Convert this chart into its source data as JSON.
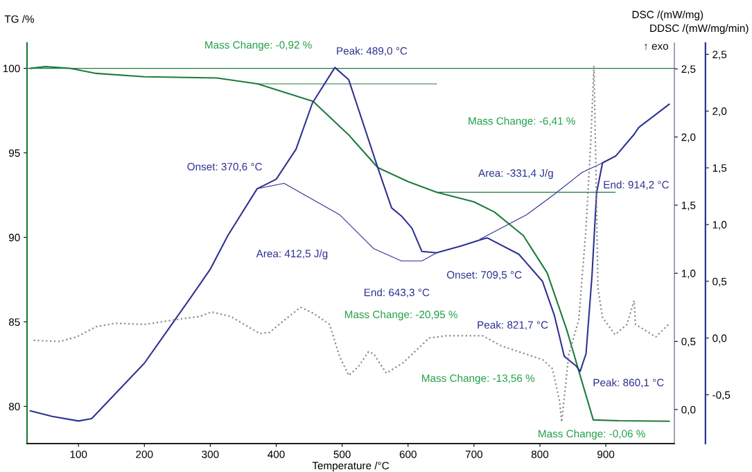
{
  "chart_data": {
    "type": "line",
    "xlabel": "Temperature /°C",
    "ylabel": "TG /%",
    "y2label": "DSC /(mW/mg)",
    "y3label": "DDSC /(mW/mg/min)",
    "xlim": [
      22,
      1004
    ],
    "xticks": [
      100,
      200,
      300,
      400,
      500,
      600,
      700,
      800,
      900
    ],
    "ylim": [
      77.8,
      101.5
    ],
    "yticks": [
      80,
      85,
      90,
      95,
      100
    ],
    "y2lim": [
      -0.25,
      2.69
    ],
    "y2ticks": [
      {
        "value": 0,
        "label": "0,0"
      },
      {
        "value": 0.5,
        "label": "0,5"
      },
      {
        "value": 1,
        "label": "1,0"
      },
      {
        "value": 1.5,
        "label": "1,5"
      },
      {
        "value": 2,
        "label": "2,0"
      },
      {
        "value": 2.5,
        "label": "2,5"
      }
    ],
    "y3lim": [
      -0.93,
      2.6
    ],
    "y3ticks": [
      {
        "value": -0.5,
        "label": "-0,5"
      },
      {
        "value": 0,
        "label": "0,0"
      },
      {
        "value": 0.5,
        "label": "0,5"
      },
      {
        "value": 1,
        "label": "1,0"
      },
      {
        "value": 1.5,
        "label": "1,5"
      },
      {
        "value": 2,
        "label": "2,0"
      },
      {
        "value": 2.5,
        "label": "2,5"
      }
    ],
    "grid": false,
    "legend": false,
    "marker": "none",
    "series": [
      {
        "color": "#1e7b3c",
        "line_style": "solid",
        "x": [
          27,
          50,
          87,
          127,
          200,
          310,
          372,
          456,
          510,
          554,
          600,
          643,
          700,
          731,
          775,
          811,
          841,
          859,
          881,
          920,
          996
        ],
        "values": [
          100.0,
          100.1,
          100.0,
          99.7,
          99.5,
          99.43,
          99.08,
          98.05,
          96.06,
          94.13,
          93.3,
          92.67,
          92.1,
          91.5,
          90.1,
          87.9,
          84.5,
          82.1,
          79.2,
          79.15,
          79.12
        ]
      },
      {
        "color": "#2e3192",
        "line_style": "solid",
        "axis": "y2",
        "x": [
          27,
          60,
          100,
          120,
          200,
          270,
          300,
          327,
          371,
          400,
          430,
          455,
          489,
          510,
          553,
          575,
          590,
          606,
          621,
          643,
          680,
          713,
          720,
          768,
          804,
          822,
          837,
          855,
          861,
          870,
          879,
          883,
          886,
          895,
          915,
          943,
          950,
          996
        ],
        "values": [
          -0.01,
          -0.05,
          -0.084,
          -0.067,
          0.34,
          0.82,
          1.03,
          1.28,
          1.62,
          1.69,
          1.91,
          2.25,
          2.51,
          2.42,
          1.79,
          1.48,
          1.42,
          1.33,
          1.16,
          1.15,
          1.2,
          1.25,
          1.26,
          1.14,
          0.94,
          0.69,
          0.39,
          0.32,
          0.28,
          0.41,
          0.98,
          1.33,
          1.59,
          1.81,
          1.86,
          2.02,
          2.07,
          2.24
        ]
      },
      {
        "color": "#8a8a8a",
        "line_style": "dotted",
        "axis": "y3",
        "x": [
          32,
          72,
          97,
          127,
          156,
          200,
          258,
          284,
          302,
          331,
          375,
          390,
          419,
          437,
          456,
          481,
          496,
          510,
          525,
          540,
          548,
          567,
          592,
          632,
          658,
          713,
          742,
          804,
          819,
          830,
          833,
          837,
          844,
          859,
          870,
          877,
          882,
          885,
          888,
          895,
          914,
          932,
          943,
          945,
          976,
          995
        ],
        "values": [
          -0.02,
          -0.03,
          0.01,
          0.1,
          0.13,
          0.12,
          0.17,
          0.19,
          0.23,
          0.19,
          0.04,
          0.05,
          0.19,
          0.27,
          0.22,
          0.12,
          -0.16,
          -0.33,
          -0.25,
          -0.12,
          -0.14,
          -0.31,
          -0.22,
          0.0,
          0.02,
          0.02,
          -0.07,
          -0.19,
          -0.27,
          -0.56,
          -0.74,
          -0.52,
          -0.14,
          0.16,
          0.97,
          1.71,
          2.4,
          1.5,
          0.44,
          0.18,
          0.03,
          0.12,
          0.33,
          0.12,
          0.01,
          0.12
        ]
      },
      {
        "color": "#1e7b3c",
        "line_style": "solid",
        "x": [
          370.6,
          643.3
        ],
        "values": [
          99.08,
          99.08
        ]
      },
      {
        "color": "#1e7b3c",
        "line_style": "solid",
        "x": [
          643.3,
          914.2
        ],
        "values": [
          92.67,
          92.67
        ]
      },
      {
        "color": "#2e3192",
        "line_style": "solid",
        "axis": "y2",
        "x": [
          370.6,
          412,
          496,
          548,
          590,
          621,
          643.3
        ],
        "values": [
          1.62,
          1.66,
          1.43,
          1.18,
          1.09,
          1.09,
          1.15
        ]
      },
      {
        "color": "#2e3192",
        "line_style": "solid",
        "axis": "y2",
        "x": [
          709.5,
          780,
          822,
          864,
          895,
          914.2
        ],
        "values": [
          1.25,
          1.43,
          1.58,
          1.74,
          1.81,
          1.86
        ]
      }
    ],
    "ref_lines": [
      {
        "axis": "y",
        "value": 100,
        "color": "#1e7b3c",
        "line_style": "solid"
      }
    ],
    "annotations": [
      "Mass Change: -0,92 %",
      "Peak: 489,0 °C",
      "Mass Change: -6,41 %",
      "Onset: 370,6 °C",
      "Area: -331,4 J/g",
      "End: 914,2 °C",
      "Area: 412,5 J/g",
      "End: 643,3 °C",
      "Onset: 709,5 °C",
      "Mass Change: -20,95 %",
      "Peak: 821,7 °C",
      "Mass Change: -13,56 %",
      "Peak: 860,1 °C",
      "Mass Change: -0,06 %",
      "↑ exo"
    ]
  }
}
